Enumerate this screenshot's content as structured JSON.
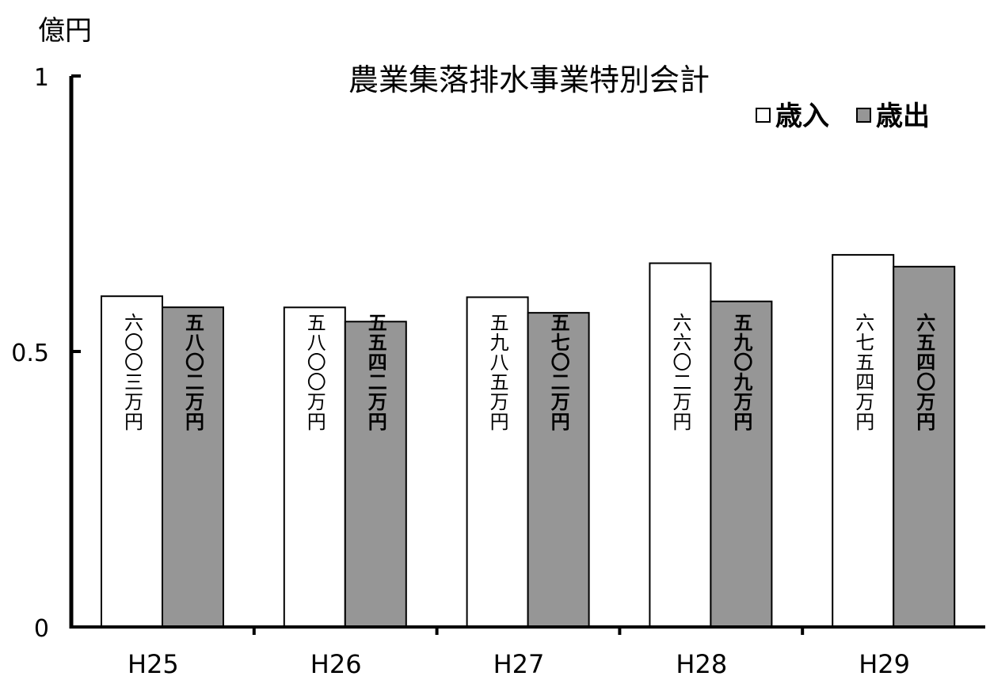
{
  "chart_data": {
    "type": "bar",
    "title": "農業集落排水事業特別会計",
    "unit_label": "億円",
    "categories": [
      "H25",
      "H26",
      "H27",
      "H28",
      "H29"
    ],
    "ylim": [
      0,
      1
    ],
    "yticks": [
      "0",
      "0.5",
      "1"
    ],
    "legend_position": "top-right",
    "grid": false,
    "series": [
      {
        "name": "歳入",
        "color": "#ffffff",
        "values": [
          0.6003,
          0.58,
          0.5985,
          0.6602,
          0.6754
        ],
        "labels": [
          "六〇〇三万円",
          "五八〇〇万円",
          "五九八五万円",
          "六六〇二万円",
          "六七五四万円"
        ]
      },
      {
        "name": "歳出",
        "color": "#969696",
        "values": [
          0.5802,
          0.5542,
          0.5702,
          0.5909,
          0.654
        ],
        "labels": [
          "五八〇二万円",
          "五五四二万円",
          "五七〇二万円",
          "五九〇九万円",
          "六五四〇万円"
        ]
      }
    ]
  }
}
